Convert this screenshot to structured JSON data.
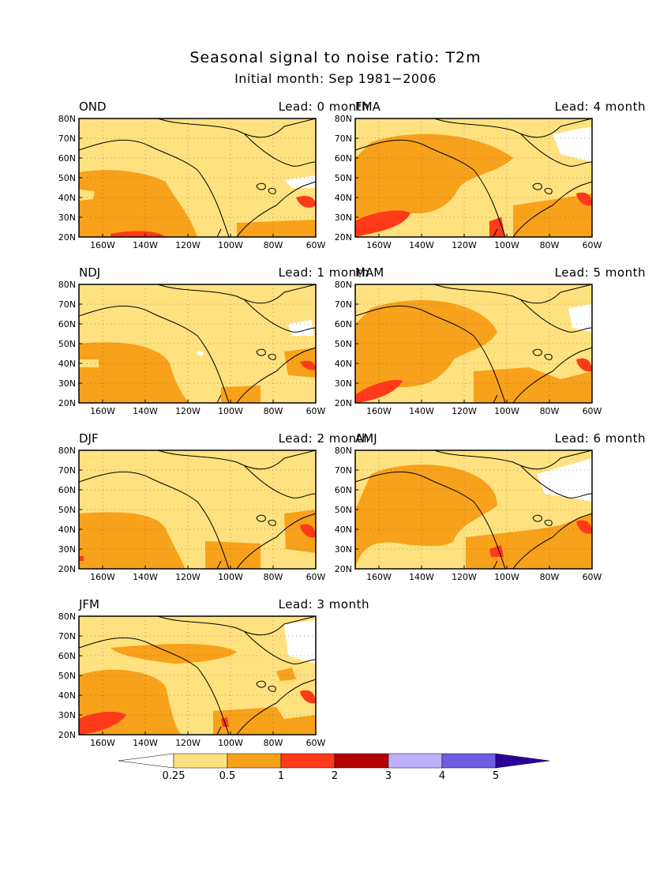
{
  "figure": {
    "title": "Seasonal signal to noise ratio: T2m",
    "subtitle": "Initial month: Sep 1981−2006"
  },
  "map": {
    "lat_ticks": [
      "80N",
      "70N",
      "60N",
      "50N",
      "40N",
      "30N",
      "20N"
    ],
    "lon_ticks": [
      "160W",
      "140W",
      "120W",
      "100W",
      "80W",
      "60W"
    ],
    "lon_range": [
      -170,
      -60
    ],
    "lat_range": [
      20,
      80
    ]
  },
  "panels": [
    {
      "season": "OND",
      "lead": "Lead: 0 month"
    },
    {
      "season": "FMA",
      "lead": "Lead: 4 month"
    },
    {
      "season": "NDJ",
      "lead": "Lead: 1 month"
    },
    {
      "season": "MAM",
      "lead": "Lead: 5 month"
    },
    {
      "season": "DJF",
      "lead": "Lead: 2 month"
    },
    {
      "season": "AMJ",
      "lead": "Lead: 6 month"
    },
    {
      "season": "JFM",
      "lead": "Lead: 3 month"
    }
  ],
  "colorbar": {
    "levels": [
      "0.25",
      "0.5",
      "1",
      "2",
      "3",
      "4",
      "5"
    ],
    "colors": [
      "#ffffff",
      "#ffe27f",
      "#f8a11a",
      "#ff3a1a",
      "#b30000",
      "#bdb0ff",
      "#6d5de0",
      "#2a0099"
    ]
  }
}
